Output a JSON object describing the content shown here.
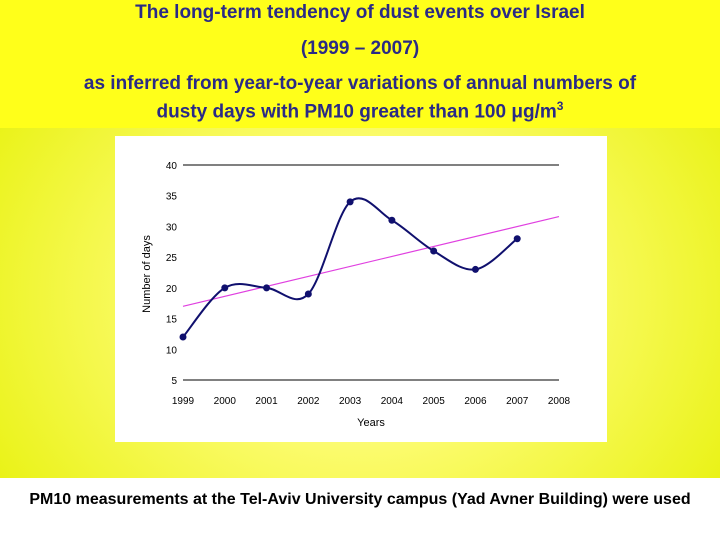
{
  "header": {
    "title_line1": "The long-term tendency of dust events over Israel",
    "title_line2": "(1999 – 2007)",
    "subtitle_part1": "as inferred from year-to-year variations of annual numbers of",
    "subtitle_part2": "dusty days with PM10 greater than 100 ",
    "subtitle_unit": "μg/m",
    "subtitle_unit_exp": "3"
  },
  "footer": {
    "note": "PM10 measurements at the Tel-Aviv University campus (Yad Avner Building) were used"
  },
  "colors": {
    "data_series": "#10106e",
    "trend_line": "#e040e0",
    "header_text": "#2a2a86"
  },
  "chart_data": {
    "type": "line",
    "title": "",
    "xlabel": "Years",
    "ylabel": "Number of days",
    "xlim": [
      1999,
      2008
    ],
    "ylim": [
      5,
      40
    ],
    "x_ticks": [
      "1999",
      "2000",
      "2001",
      "2002",
      "2003",
      "2004",
      "2005",
      "2006",
      "2007",
      "2008"
    ],
    "y_ticks": [
      "40",
      "35",
      "30",
      "25",
      "20",
      "15",
      "10",
      "5"
    ],
    "gridlines_y": [
      40,
      5
    ],
    "series": [
      {
        "x": [
          1999,
          2000,
          2001,
          2002,
          2003,
          2004,
          2005,
          2006,
          2007
        ],
        "values": [
          12,
          20,
          20,
          19,
          34,
          31,
          26,
          23,
          28
        ]
      }
    ],
    "trend": {
      "x": [
        1999,
        2008
      ],
      "values": [
        17,
        31.6
      ]
    }
  }
}
